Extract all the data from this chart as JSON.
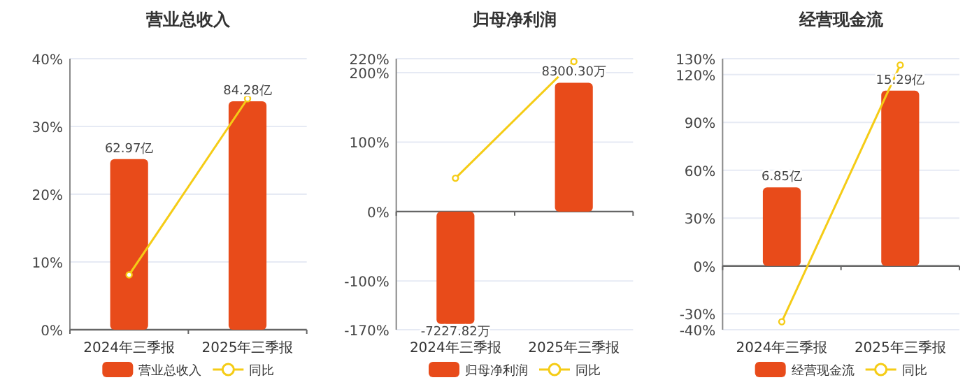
{
  "chart_data": [
    {
      "type": "bar",
      "title": "营业总收入",
      "categories": [
        "2024年三季报",
        "2025年三季报"
      ],
      "series": [
        {
          "name": "营业总收入",
          "axis": "y2",
          "color": "#e84b1a",
          "values": [
            62.97,
            84.28
          ],
          "value_labels": [
            "62.97亿",
            "84.28亿"
          ]
        },
        {
          "name": "同比",
          "type": "line",
          "color": "#f5cc16",
          "values": [
            8.1,
            34.1
          ]
        }
      ],
      "ylim": [
        0,
        40
      ],
      "yticks": [
        {
          "value": 0,
          "label": "0%"
        },
        {
          "value": 10,
          "label": "10%"
        },
        {
          "value": 20,
          "label": "20%"
        },
        {
          "value": 30,
          "label": "30%"
        },
        {
          "value": 40,
          "label": "40%"
        }
      ],
      "y2lim": [
        0,
        100
      ],
      "grid": "y",
      "legend": "bottom",
      "marker": "circle"
    },
    {
      "type": "bar",
      "title": "归母净利润",
      "categories": [
        "2024年三季报",
        "2025年三季报"
      ],
      "series": [
        {
          "name": "归母净利润",
          "axis": "y2",
          "color": "#e84b1a",
          "values": [
            -7227.82,
            8300.3
          ],
          "value_labels": [
            "-7227.82万",
            "8300.30万"
          ]
        },
        {
          "name": "同比",
          "type": "line",
          "color": "#f5cc16",
          "values": [
            48,
            216
          ]
        }
      ],
      "ylim": [
        -170,
        220
      ],
      "yticks": [
        {
          "value": -170,
          "label": "-170%"
        },
        {
          "value": -100,
          "label": "-100%"
        },
        {
          "value": 0,
          "label": "0%"
        },
        {
          "value": 100,
          "label": "100%"
        },
        {
          "value": 200,
          "label": "200%"
        },
        {
          "value": 220,
          "label": "220%"
        }
      ],
      "y2lim": [
        -7600,
        9850
      ],
      "grid": "y",
      "legend": "bottom",
      "marker": "circle"
    },
    {
      "type": "bar",
      "title": "经营现金流",
      "categories": [
        "2024年三季报",
        "2025年三季报"
      ],
      "series": [
        {
          "name": "经营现金流",
          "axis": "y2",
          "color": "#e84b1a",
          "values": [
            6.85,
            15.29
          ],
          "value_labels": [
            "6.85亿",
            "15.29亿"
          ]
        },
        {
          "name": "同比",
          "type": "line",
          "color": "#f5cc16",
          "values": [
            -35,
            126
          ]
        }
      ],
      "ylim": [
        -40,
        130
      ],
      "yticks": [
        {
          "value": -40,
          "label": "-40%"
        },
        {
          "value": -30,
          "label": "-30%"
        },
        {
          "value": 0,
          "label": "0%"
        },
        {
          "value": 30,
          "label": "30%"
        },
        {
          "value": 60,
          "label": "60%"
        },
        {
          "value": 90,
          "label": "90%"
        },
        {
          "value": 120,
          "label": "120%"
        },
        {
          "value": 130,
          "label": "130%"
        }
      ],
      "y2lim": [
        -5.56,
        18.07
      ],
      "grid": "y",
      "legend": "bottom",
      "marker": "circle"
    }
  ]
}
